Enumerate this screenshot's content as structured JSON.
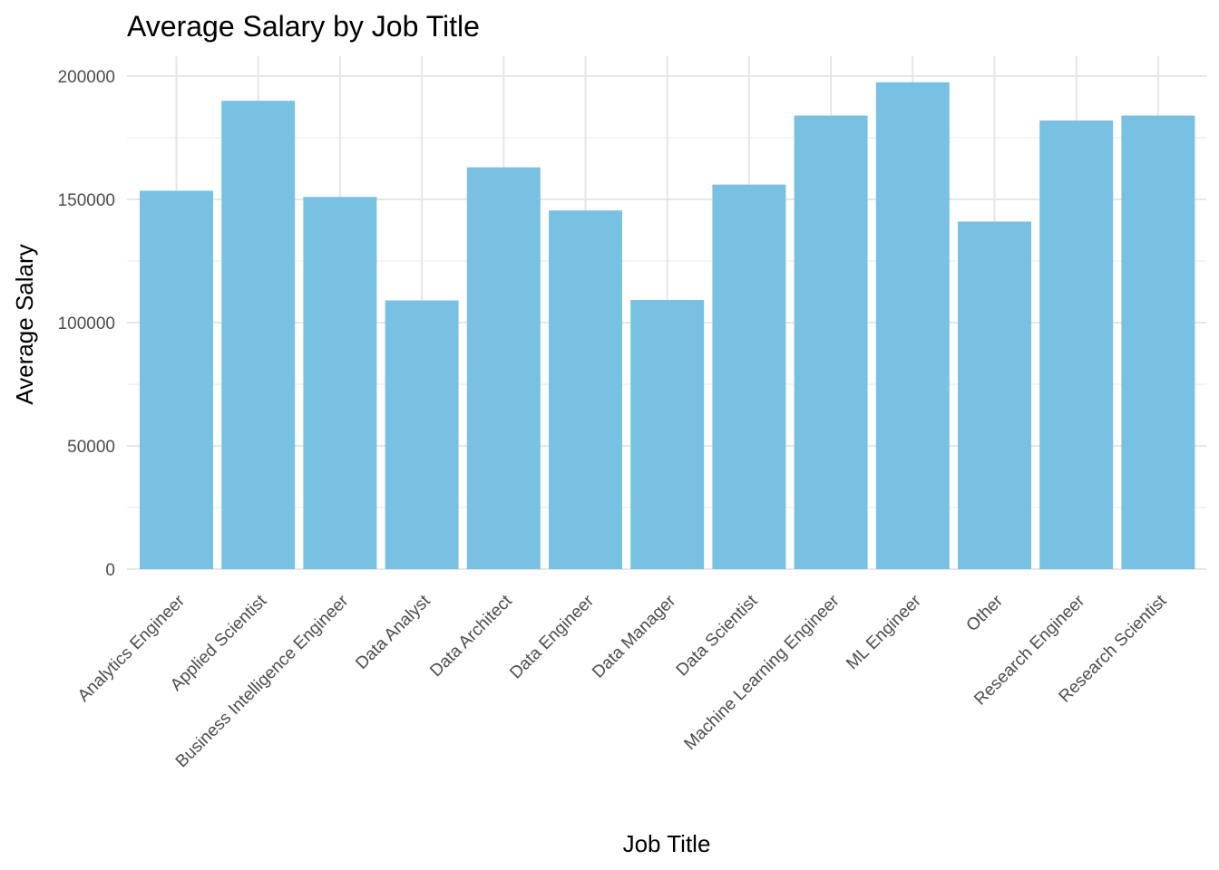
{
  "chart_data": {
    "type": "bar",
    "title": "Average Salary by Job Title",
    "xlabel": "Job Title",
    "ylabel": "Average Salary",
    "categories": [
      "Analytics Engineer",
      "Applied Scientist",
      "Business Intelligence Engineer",
      "Data Analyst",
      "Data Architect",
      "Data Engineer",
      "Data Manager",
      "Data Scientist",
      "Machine Learning Engineer",
      "ML Engineer",
      "Other",
      "Research Engineer",
      "Research Scientist"
    ],
    "values": [
      153500,
      190000,
      151000,
      109000,
      163000,
      145500,
      109200,
      156000,
      184000,
      197500,
      141000,
      182000,
      184000
    ],
    "ylim": [
      0,
      200000
    ],
    "yticks": [
      0,
      50000,
      100000,
      150000,
      200000
    ],
    "ytick_labels": [
      "0",
      "50000",
      "100000",
      "150000",
      "200000"
    ],
    "grid": true,
    "bar_color": "#78C1E3"
  }
}
